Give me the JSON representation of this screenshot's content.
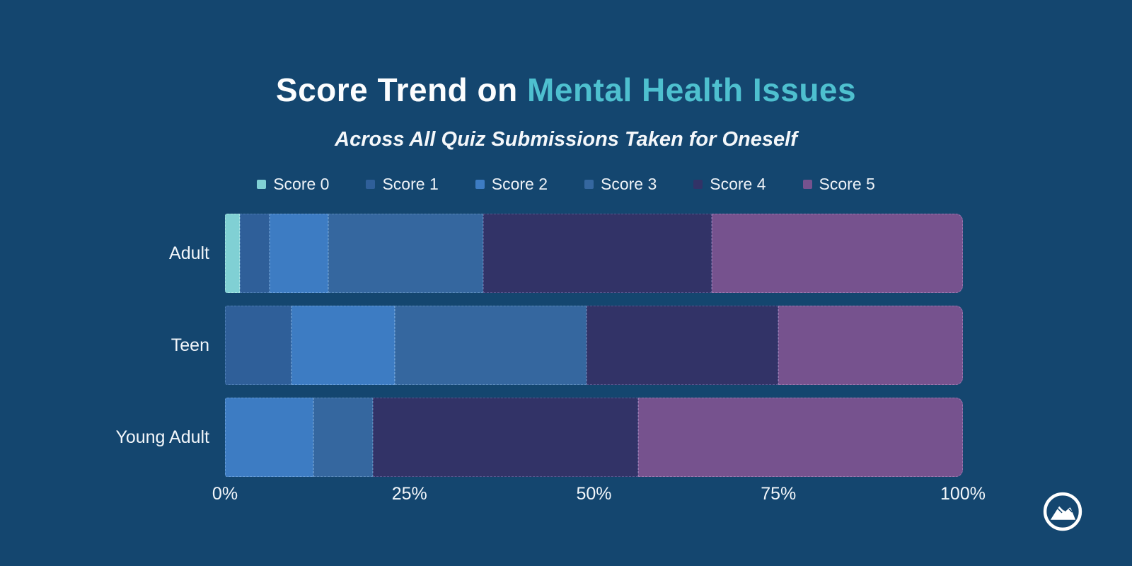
{
  "page": {
    "background_color": "#14466F"
  },
  "title": {
    "part1": "Score Trend on ",
    "part2": "Mental Health Issues",
    "accent_color": "#4EC0CF"
  },
  "subtitle": "Across All Quiz Submissions Taken for Oneself",
  "chart_data": {
    "type": "bar",
    "orientation": "horizontal",
    "stacked": true,
    "stack_total": 100,
    "categories": [
      "Adult",
      "Teen",
      "Young Adult"
    ],
    "series": [
      {
        "name": "Score 0",
        "color": "#80D0D4",
        "border_color": "#A6E2E2",
        "values": [
          2,
          0,
          0
        ]
      },
      {
        "name": "Score 1",
        "color": "#2F5F99",
        "border_color": "#4F7FB4",
        "values": [
          4,
          9,
          0
        ]
      },
      {
        "name": "Score 2",
        "color": "#3D7CC3",
        "border_color": "#669CD7",
        "values": [
          8,
          14,
          12
        ]
      },
      {
        "name": "Score 3",
        "color": "#35679F",
        "border_color": "#5A89B9",
        "values": [
          21,
          26,
          8
        ]
      },
      {
        "name": "Score 4",
        "color": "#323367",
        "border_color": "#57578E",
        "values": [
          31,
          26,
          36
        ]
      },
      {
        "name": "Score 5",
        "color": "#76528E",
        "border_color": "#9A78AE",
        "values": [
          34,
          25,
          44
        ]
      }
    ],
    "xlabel": "",
    "ylabel": "",
    "xlim": [
      0,
      100
    ],
    "x_ticks": [
      "0%",
      "25%",
      "50%",
      "75%",
      "100%"
    ],
    "grid": false,
    "legend_position": "top"
  },
  "footer": {
    "logo_icon": "mountain-circle-logo"
  }
}
